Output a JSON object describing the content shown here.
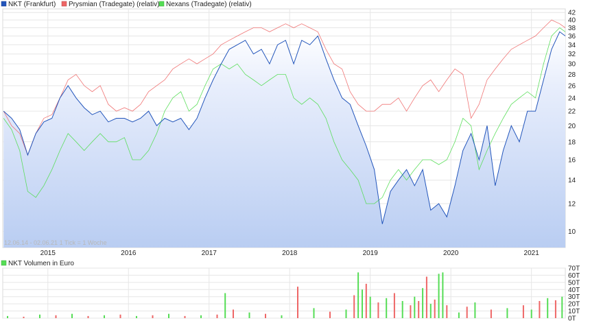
{
  "chart_data": [
    {
      "type": "line",
      "legend": [
        {
          "label": "NKT (Frankfurt)",
          "color": "#2255bb"
        },
        {
          "label": "Prysmian (Tradegate) (relativ)",
          "color": "#ee6666"
        },
        {
          "label": "Nexans (Tradegate) (relativ)",
          "color": "#55dd55"
        }
      ],
      "range_label": "12.06.14 - 02.06.21   1 Tick = 1 Woche",
      "x_ticks": [
        "2015",
        "2016",
        "2017",
        "2018",
        "2019",
        "2020",
        "2021"
      ],
      "y_ticks": [
        "10",
        "12",
        "14",
        "16",
        "18",
        "20",
        "22",
        "24",
        "26",
        "28",
        "30",
        "32",
        "34",
        "36",
        "38",
        "40",
        "42"
      ],
      "y_scale": "log",
      "ylim": [
        9,
        43
      ],
      "xlim": [
        2014.44,
        2021.42
      ],
      "grid": true,
      "series": [
        {
          "name": "NKT (Frankfurt)",
          "fill": "area",
          "x": [
            2014.45,
            2014.55,
            2014.65,
            2014.75,
            2014.85,
            2014.95,
            2015.05,
            2015.15,
            2015.25,
            2015.35,
            2015.45,
            2015.55,
            2015.65,
            2015.75,
            2015.85,
            2015.95,
            2016.05,
            2016.15,
            2016.25,
            2016.35,
            2016.45,
            2016.55,
            2016.65,
            2016.75,
            2016.85,
            2016.95,
            2017.05,
            2017.15,
            2017.25,
            2017.35,
            2017.45,
            2017.55,
            2017.65,
            2017.75,
            2017.85,
            2017.95,
            2018.05,
            2018.15,
            2018.25,
            2018.35,
            2018.45,
            2018.55,
            2018.65,
            2018.75,
            2018.85,
            2018.95,
            2019.05,
            2019.15,
            2019.25,
            2019.35,
            2019.45,
            2019.55,
            2019.65,
            2019.75,
            2019.85,
            2019.95,
            2020.05,
            2020.15,
            2020.25,
            2020.35,
            2020.45,
            2020.55,
            2020.65,
            2020.75,
            2020.85,
            2020.95,
            2021.05,
            2021.15,
            2021.25,
            2021.35,
            2021.42
          ],
          "values": [
            22,
            21,
            19.5,
            16.5,
            19,
            20.5,
            21,
            24,
            26,
            24,
            22.5,
            21.5,
            22,
            20.5,
            21,
            21,
            20.5,
            21,
            22,
            20,
            21,
            20.5,
            21,
            19.5,
            21,
            24,
            27,
            30,
            33,
            34,
            35,
            32,
            33,
            30,
            34,
            35,
            30,
            35,
            34,
            36,
            31,
            27,
            24,
            23,
            20,
            17.5,
            15,
            10.5,
            13,
            14,
            15,
            13.5,
            15,
            11.5,
            12,
            11,
            13.5,
            17,
            19,
            16,
            20,
            13.5,
            17,
            20,
            18,
            22,
            22,
            27,
            33,
            37,
            36
          ]
        },
        {
          "name": "Prysmian (Tradegate) (relativ)",
          "x": [
            2014.45,
            2014.55,
            2014.65,
            2014.75,
            2014.85,
            2014.95,
            2015.05,
            2015.15,
            2015.25,
            2015.35,
            2015.45,
            2015.55,
            2015.65,
            2015.75,
            2015.85,
            2015.95,
            2016.05,
            2016.15,
            2016.25,
            2016.35,
            2016.45,
            2016.55,
            2016.65,
            2016.75,
            2016.85,
            2016.95,
            2017.05,
            2017.15,
            2017.25,
            2017.35,
            2017.45,
            2017.55,
            2017.65,
            2017.75,
            2017.85,
            2017.95,
            2018.05,
            2018.15,
            2018.25,
            2018.35,
            2018.45,
            2018.55,
            2018.65,
            2018.75,
            2018.85,
            2018.95,
            2019.05,
            2019.15,
            2019.25,
            2019.35,
            2019.45,
            2019.55,
            2019.65,
            2019.75,
            2019.85,
            2019.95,
            2020.05,
            2020.15,
            2020.25,
            2020.35,
            2020.45,
            2020.55,
            2020.65,
            2020.75,
            2020.85,
            2020.95,
            2021.05,
            2021.15,
            2021.25,
            2021.35,
            2021.42
          ],
          "values": [
            22,
            20,
            19,
            16.5,
            19,
            21,
            21.5,
            24,
            27,
            28,
            26,
            25,
            26,
            23,
            22,
            22.5,
            22,
            23,
            25,
            26,
            27,
            29,
            30,
            31,
            30,
            31,
            32,
            34,
            35,
            36,
            37,
            38,
            38,
            37,
            38,
            39,
            38,
            39,
            38,
            37,
            33,
            30,
            29,
            25,
            23,
            22,
            22,
            23,
            23,
            24,
            22,
            24,
            26,
            27,
            25,
            27,
            29,
            28,
            21,
            23,
            27,
            29,
            31,
            33,
            34,
            35,
            36,
            38,
            40,
            39,
            38
          ]
        },
        {
          "name": "Nexans (Tradegate) (relativ)",
          "x": [
            2014.45,
            2014.55,
            2014.65,
            2014.75,
            2014.85,
            2014.95,
            2015.05,
            2015.15,
            2015.25,
            2015.35,
            2015.45,
            2015.55,
            2015.65,
            2015.75,
            2015.85,
            2015.95,
            2016.05,
            2016.15,
            2016.25,
            2016.35,
            2016.45,
            2016.55,
            2016.65,
            2016.75,
            2016.85,
            2016.95,
            2017.05,
            2017.15,
            2017.25,
            2017.35,
            2017.45,
            2017.55,
            2017.65,
            2017.75,
            2017.85,
            2017.95,
            2018.05,
            2018.15,
            2018.25,
            2018.35,
            2018.45,
            2018.55,
            2018.65,
            2018.75,
            2018.85,
            2018.95,
            2019.05,
            2019.15,
            2019.25,
            2019.35,
            2019.45,
            2019.55,
            2019.65,
            2019.75,
            2019.85,
            2019.95,
            2020.05,
            2020.15,
            2020.25,
            2020.35,
            2020.45,
            2020.55,
            2020.65,
            2020.75,
            2020.85,
            2020.95,
            2021.05,
            2021.15,
            2021.25,
            2021.35,
            2021.42
          ],
          "values": [
            21,
            19.5,
            17,
            13,
            12.5,
            13.5,
            15,
            17,
            19,
            18,
            17,
            18,
            19,
            18,
            18,
            18.5,
            16,
            16,
            17,
            19,
            22,
            24,
            25,
            22,
            23,
            26,
            29,
            30,
            29,
            30,
            28,
            27,
            26,
            27,
            28,
            28,
            24,
            23,
            24,
            23,
            21,
            18,
            16,
            15,
            14,
            12,
            12,
            12.5,
            14,
            15,
            14,
            15,
            16,
            16,
            15.5,
            16,
            18,
            21,
            20,
            15,
            17,
            19,
            21,
            23,
            24,
            25,
            24,
            30,
            36,
            38,
            37
          ]
        }
      ]
    },
    {
      "type": "bar",
      "legend": [
        {
          "label": "NKT Volumen in Euro",
          "color": "#55dd55"
        }
      ],
      "y_ticks": [
        "0T",
        "10T",
        "20T",
        "30T",
        "40T",
        "50T",
        "60T",
        "70T"
      ],
      "ylim": [
        0,
        70
      ],
      "ylabel": "T",
      "up_color": "#55dd55",
      "down_color": "#ee6666",
      "x_ticks": [
        "2015",
        "2016",
        "2017",
        "2018",
        "2019",
        "2020",
        "2021"
      ],
      "x": [
        2014.5,
        2014.7,
        2014.9,
        2015.1,
        2015.3,
        2015.5,
        2015.7,
        2015.9,
        2016.1,
        2016.3,
        2016.5,
        2016.7,
        2016.9,
        2017.1,
        2017.2,
        2017.3,
        2017.5,
        2017.7,
        2017.9,
        2018.1,
        2018.3,
        2018.5,
        2018.7,
        2018.8,
        2018.85,
        2018.9,
        2018.95,
        2019.0,
        2019.1,
        2019.2,
        2019.3,
        2019.4,
        2019.5,
        2019.55,
        2019.6,
        2019.65,
        2019.7,
        2019.75,
        2019.8,
        2019.85,
        2019.9,
        2019.95,
        2020.1,
        2020.2,
        2020.3,
        2020.5,
        2020.7,
        2020.9,
        2021.0,
        2021.1,
        2021.2,
        2021.3,
        2021.38
      ],
      "values": [
        3,
        2,
        5,
        4,
        6,
        3,
        4,
        5,
        3,
        4,
        6,
        3,
        4,
        5,
        35,
        12,
        8,
        6,
        4,
        44,
        14,
        9,
        12,
        32,
        64,
        40,
        48,
        30,
        22,
        28,
        35,
        24,
        18,
        30,
        24,
        42,
        58,
        20,
        26,
        62,
        64,
        18,
        8,
        16,
        22,
        12,
        14,
        18,
        12,
        24,
        28,
        25,
        30
      ],
      "up": [
        true,
        false,
        true,
        false,
        true,
        false,
        true,
        false,
        true,
        false,
        true,
        false,
        true,
        false,
        true,
        false,
        true,
        false,
        true,
        false,
        true,
        false,
        true,
        false,
        true,
        true,
        false,
        true,
        false,
        true,
        false,
        true,
        false,
        true,
        false,
        true,
        false,
        true,
        false,
        true,
        true,
        false,
        true,
        false,
        true,
        false,
        true,
        false,
        true,
        false,
        true,
        false,
        true
      ]
    }
  ]
}
